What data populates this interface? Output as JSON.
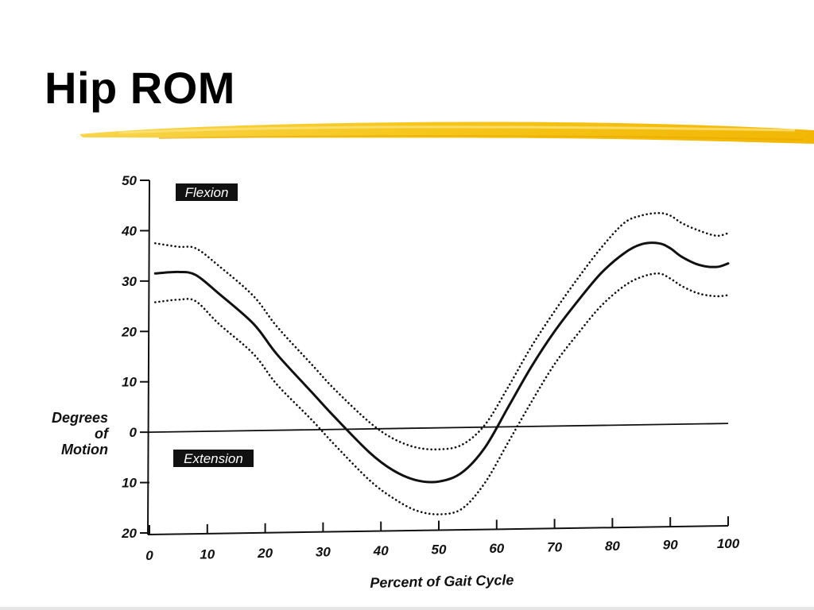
{
  "slide": {
    "title": "Hip ROM",
    "accent_color": "#f5c518"
  },
  "chart_data": {
    "type": "line",
    "title": "",
    "xlabel": "Percent of Gait Cycle",
    "ylabel": [
      "Degrees",
      "of",
      "Motion"
    ],
    "x_ticks": [
      0,
      10,
      20,
      30,
      40,
      50,
      60,
      70,
      80,
      90,
      100
    ],
    "y_ticks": [
      {
        "value": 50,
        "label": "50"
      },
      {
        "value": 40,
        "label": "40"
      },
      {
        "value": 30,
        "label": "30"
      },
      {
        "value": 20,
        "label": "20"
      },
      {
        "value": 10,
        "label": "10"
      },
      {
        "value": 0,
        "label": "0"
      },
      {
        "value": -10,
        "label": "10"
      },
      {
        "value": -20,
        "label": "20"
      }
    ],
    "xlim": [
      0,
      100
    ],
    "ylim": [
      -20,
      50
    ],
    "regions": {
      "above": "Flexion",
      "below": "Extension"
    },
    "reference_line": {
      "y": 0
    },
    "series": [
      {
        "style": "solid",
        "x": [
          1,
          5,
          8,
          12,
          18,
          22,
          28,
          32,
          38,
          42,
          46,
          50,
          54,
          58,
          62,
          66,
          70,
          74,
          78,
          82,
          85,
          88,
          90,
          92,
          95,
          98,
          100
        ],
        "y": [
          31.5,
          31.8,
          31.2,
          27.5,
          21.5,
          15.5,
          8,
          3,
          -4,
          -7.5,
          -9.5,
          -9.8,
          -8,
          -3,
          5,
          13,
          20,
          26,
          31.5,
          35.5,
          37.3,
          37.5,
          36.5,
          34.8,
          33.2,
          32.8,
          33.5
        ]
      },
      {
        "style": "dotted",
        "x": [
          1,
          5,
          8,
          12,
          18,
          22,
          28,
          32,
          38,
          42,
          46,
          50,
          54,
          58,
          62,
          66,
          70,
          74,
          78,
          82,
          85,
          88,
          90,
          92,
          95,
          98,
          100
        ],
        "y": [
          37.5,
          36.8,
          36.5,
          33,
          27,
          21,
          13.5,
          8.5,
          2,
          -1.2,
          -3,
          -3.4,
          -2.5,
          1.5,
          9,
          17,
          24,
          30.5,
          36.5,
          41.5,
          43,
          43.5,
          43,
          41.5,
          40,
          39,
          39.5
        ]
      },
      {
        "style": "dotted",
        "x": [
          1,
          5,
          8,
          12,
          18,
          22,
          28,
          32,
          38,
          42,
          46,
          50,
          54,
          58,
          62,
          66,
          70,
          74,
          78,
          82,
          85,
          88,
          90,
          92,
          95,
          98,
          100
        ],
        "y": [
          25.8,
          26.3,
          26,
          21.5,
          15.5,
          9.5,
          2.5,
          -2.5,
          -9.5,
          -13,
          -15.5,
          -16.3,
          -15.2,
          -10,
          -2,
          6,
          13.5,
          19.5,
          25,
          29,
          30.8,
          31.5,
          30.5,
          29,
          27.5,
          27,
          27.2
        ]
      }
    ],
    "grid": false,
    "legend": "none"
  }
}
